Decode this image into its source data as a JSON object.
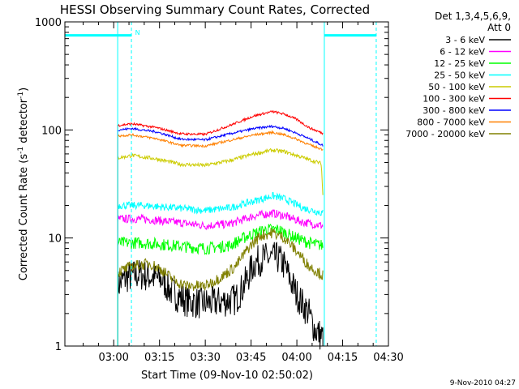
{
  "chart_data": {
    "type": "line",
    "title": "HESSI Observing Summary Count Rates, Corrected",
    "xlabel": "Start Time (09-Nov-10 02:50:02)",
    "ylabel_main": "Corrected Count Rate (s",
    "ylabel_sup1": "-1",
    "ylabel_mid": " detector",
    "ylabel_sup2": "-1",
    "ylabel_end": ")",
    "x_range_min": [
      -6,
      100
    ],
    "y_scale": "log",
    "ylim": [
      1,
      1000
    ],
    "x_ticks": [
      {
        "label": "03:00",
        "value": 10
      },
      {
        "label": "03:15",
        "value": 25
      },
      {
        "label": "03:30",
        "value": 40
      },
      {
        "label": "03:45",
        "value": 55
      },
      {
        "label": "04:00",
        "value": 70
      },
      {
        "label": "04:15",
        "value": 85
      },
      {
        "label": "04:30",
        "value": 100
      }
    ],
    "y_ticks": [
      {
        "label": "1",
        "value": 1
      },
      {
        "label": "10",
        "value": 10
      },
      {
        "label": "100",
        "value": 100
      },
      {
        "label": "1000",
        "value": 1000
      }
    ],
    "legend_header": [
      "Det 1,3,4,5,6,9,",
      "Att 0"
    ],
    "legend_position": "right",
    "footer": "9-Nov-2010 04:27",
    "data_start_min": 11.3,
    "data_end_min": 78.5,
    "series": [
      {
        "name": "3 - 6 keV",
        "color": "#000000",
        "noise": 0.35,
        "points": [
          [
            11.3,
            3.6
          ],
          [
            14,
            4.3
          ],
          [
            18,
            4.6
          ],
          [
            22,
            4.4
          ],
          [
            26,
            4.1
          ],
          [
            28,
            3.4
          ],
          [
            30,
            3.0
          ],
          [
            34,
            2.6
          ],
          [
            38,
            2.5
          ],
          [
            42,
            2.5
          ],
          [
            46,
            2.6
          ],
          [
            50,
            2.7
          ],
          [
            53,
            3.8
          ],
          [
            56,
            5.8
          ],
          [
            59,
            6.5
          ],
          [
            62,
            6.5
          ],
          [
            64,
            6.5
          ],
          [
            66,
            5.5
          ],
          [
            68,
            4.0
          ],
          [
            70,
            3.0
          ],
          [
            72,
            2.4
          ],
          [
            74,
            2.0
          ],
          [
            76,
            1.4
          ],
          [
            78.5,
            1.2
          ]
        ]
      },
      {
        "name": "6 - 12 keV",
        "color": "#ff00ff",
        "noise": 0.09,
        "points": [
          [
            11.3,
            15
          ],
          [
            20,
            15
          ],
          [
            30,
            14
          ],
          [
            40,
            13
          ],
          [
            48,
            13.5
          ],
          [
            56,
            16
          ],
          [
            62,
            17
          ],
          [
            66,
            16
          ],
          [
            72,
            14
          ],
          [
            78.5,
            13
          ]
        ]
      },
      {
        "name": "12 - 25 keV",
        "color": "#00ff00",
        "noise": 0.13,
        "points": [
          [
            11.3,
            9
          ],
          [
            20,
            9
          ],
          [
            30,
            8.5
          ],
          [
            40,
            8
          ],
          [
            48,
            8.5
          ],
          [
            54,
            10.5
          ],
          [
            60,
            12
          ],
          [
            64,
            12
          ],
          [
            68,
            10.5
          ],
          [
            74,
            9
          ],
          [
            78.5,
            8.5
          ]
        ]
      },
      {
        "name": "25 - 50 keV",
        "color": "#00ffff",
        "noise": 0.08,
        "points": [
          [
            11.3,
            20
          ],
          [
            20,
            20
          ],
          [
            30,
            19
          ],
          [
            40,
            18
          ],
          [
            48,
            19
          ],
          [
            56,
            22
          ],
          [
            62,
            24.5
          ],
          [
            66,
            23
          ],
          [
            72,
            19
          ],
          [
            78.5,
            17
          ]
        ]
      },
      {
        "name": "50 - 100 keV",
        "color": "#cccc00",
        "noise": 0.04,
        "points": [
          [
            11.3,
            55
          ],
          [
            16,
            58
          ],
          [
            24,
            54
          ],
          [
            32,
            48
          ],
          [
            40,
            47
          ],
          [
            48,
            52
          ],
          [
            56,
            60
          ],
          [
            62,
            65
          ],
          [
            66,
            63
          ],
          [
            70,
            58
          ],
          [
            74,
            53
          ],
          [
            78,
            49
          ],
          [
            78.5,
            25
          ]
        ]
      },
      {
        "name": "100 - 300 keV",
        "color": "#ff0000",
        "noise": 0.025,
        "points": [
          [
            11.3,
            110
          ],
          [
            16,
            114
          ],
          [
            24,
            105
          ],
          [
            32,
            92
          ],
          [
            40,
            91
          ],
          [
            48,
            110
          ],
          [
            56,
            135
          ],
          [
            62,
            148
          ],
          [
            66,
            140
          ],
          [
            70,
            125
          ],
          [
            74,
            105
          ],
          [
            78.5,
            93
          ]
        ]
      },
      {
        "name": "300 - 800 keV",
        "color": "#0000ff",
        "noise": 0.025,
        "points": [
          [
            11.3,
            100
          ],
          [
            16,
            103
          ],
          [
            24,
            96
          ],
          [
            32,
            82
          ],
          [
            40,
            81
          ],
          [
            48,
            92
          ],
          [
            56,
            103
          ],
          [
            62,
            108
          ],
          [
            66,
            103
          ],
          [
            70,
            93
          ],
          [
            74,
            83
          ],
          [
            78.5,
            72
          ]
        ]
      },
      {
        "name": "800 - 7000 keV",
        "color": "#ff8000",
        "noise": 0.025,
        "points": [
          [
            11.3,
            88
          ],
          [
            16,
            90
          ],
          [
            24,
            83
          ],
          [
            32,
            72
          ],
          [
            40,
            71
          ],
          [
            48,
            80
          ],
          [
            56,
            90
          ],
          [
            62,
            95
          ],
          [
            66,
            90
          ],
          [
            70,
            82
          ],
          [
            74,
            73
          ],
          [
            78.5,
            66
          ]
        ]
      },
      {
        "name": "7000 - 20000 keV",
        "color": "#808000",
        "noise": 0.12,
        "points": [
          [
            11.3,
            4.8
          ],
          [
            16,
            5.5
          ],
          [
            22,
            5.8
          ],
          [
            26,
            5.0
          ],
          [
            30,
            4.0
          ],
          [
            34,
            3.6
          ],
          [
            40,
            3.6
          ],
          [
            46,
            4.5
          ],
          [
            50,
            5.5
          ],
          [
            54,
            8.0
          ],
          [
            58,
            10.5
          ],
          [
            62,
            11.2
          ],
          [
            66,
            10.0
          ],
          [
            70,
            7.5
          ],
          [
            74,
            5.5
          ],
          [
            78.5,
            4.5
          ]
        ]
      }
    ],
    "vlines": [
      {
        "x": 11.3,
        "color": "#00ffff",
        "style": "solid"
      },
      {
        "x": 15.8,
        "color": "#00ffff",
        "style": "dashed"
      },
      {
        "x": 79,
        "color": "#00ffff",
        "style": "solid"
      },
      {
        "x": 96,
        "color": "#00ffff",
        "style": "dashed"
      }
    ],
    "flag_bars": [
      {
        "x_from": -6,
        "x_to": 15.8,
        "y": 750,
        "color": "#00ffff"
      },
      {
        "x_from": 79,
        "x_to": 96,
        "y": 750,
        "color": "#00ffff"
      }
    ],
    "flag_label": {
      "text": "N",
      "x": 17,
      "y": 800,
      "color": "#00ffff"
    }
  }
}
